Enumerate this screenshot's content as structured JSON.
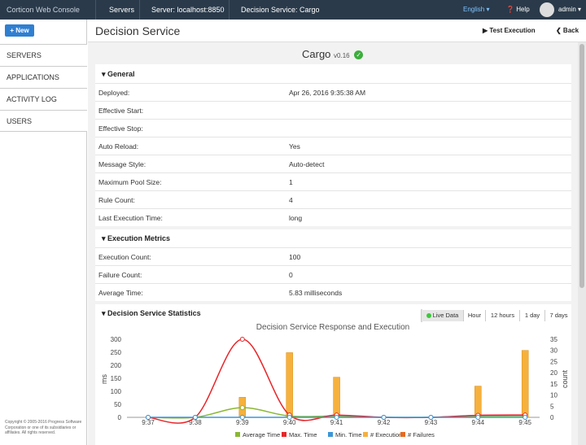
{
  "topbar": {
    "crumbs": [
      "Corticon Web Console",
      "Servers",
      "Server: localhost:8850",
      "Decision Service: Cargo"
    ],
    "language": "English ▾",
    "help": "Help",
    "user": "admin ▾"
  },
  "sidebar": {
    "new_label": "+ New",
    "items": [
      "SERVERS",
      "APPLICATIONS",
      "ACTIVITY LOG",
      "USERS"
    ],
    "copyright": "Copyright © 2005-2016 Progress Software Corporation or one of its subsidiaries or affiliates. All rights reserved."
  },
  "header": {
    "title": "Decision Service",
    "test_execution": "▶ Test Execution",
    "back": "❮ Back"
  },
  "service": {
    "name": "Cargo",
    "version": "v0.16"
  },
  "general": {
    "title": "▾ General",
    "rows": [
      {
        "label": "Deployed:",
        "value": "Apr 26, 2016 9:35:38 AM"
      },
      {
        "label": "Effective Start:",
        "value": ""
      },
      {
        "label": "Effective Stop:",
        "value": ""
      },
      {
        "label": "Auto Reload:",
        "value": "Yes"
      },
      {
        "label": "Message Style:",
        "value": "Auto-detect"
      },
      {
        "label": "Maximum Pool Size:",
        "value": "1"
      },
      {
        "label": "Rule Count:",
        "value": "4"
      },
      {
        "label": "Last Execution Time:",
        "value": "long"
      }
    ]
  },
  "metrics": {
    "title": "▾ Execution Metrics",
    "rows": [
      {
        "label": "Execution Count:",
        "value": "100"
      },
      {
        "label": "Failure Count:",
        "value": "0"
      },
      {
        "label": "Average Time:",
        "value": "5.83 milliseconds"
      }
    ]
  },
  "stats": {
    "title": "▾ Decision Service Statistics",
    "ranges": [
      "Live Data",
      "Hour",
      "12 hours",
      "1 day",
      "7 days"
    ]
  },
  "chart_data": {
    "type": "bar",
    "title": "Decision Service Response and Execution",
    "xlabel": "",
    "ylabel": "ms",
    "y2label": "count",
    "categories": [
      "9:37",
      "9:38",
      "9:39",
      "9:40",
      "9:41",
      "9:42",
      "9:43",
      "9:44",
      "9:45"
    ],
    "ylim": [
      0,
      300
    ],
    "yticks": [
      "0",
      "50",
      "100",
      "150",
      "200",
      "250",
      "300"
    ],
    "y2lim": [
      0,
      35
    ],
    "y2ticks": [
      "0",
      "5",
      "10",
      "15",
      "20",
      "25",
      "30",
      "35"
    ],
    "grid": false,
    "legend_placement": "bottom",
    "series": [
      {
        "name": "Average Time",
        "kind": "line",
        "axis": "left",
        "color": "#8ab832",
        "values": [
          0,
          0,
          37,
          5,
          5,
          0,
          0,
          5,
          6
        ]
      },
      {
        "name": "Max. Time",
        "kind": "line",
        "axis": "left",
        "color": "#e8262a",
        "values": [
          0,
          0,
          300,
          9,
          9,
          0,
          0,
          8,
          9
        ]
      },
      {
        "name": "Min. Time",
        "kind": "line",
        "axis": "left",
        "color": "#3c96d8",
        "values": [
          0,
          0,
          0,
          0,
          0,
          0,
          0,
          0,
          0
        ]
      },
      {
        "name": "# Executions",
        "kind": "bar",
        "axis": "right",
        "color": "#f6b13d",
        "values": [
          0,
          0,
          9,
          29,
          18,
          0,
          0,
          14,
          30
        ]
      },
      {
        "name": "# Failures",
        "kind": "bar",
        "axis": "right",
        "color": "#e86a1f",
        "values": [
          0,
          0,
          0,
          0,
          0,
          0,
          0,
          0,
          0
        ]
      }
    ]
  }
}
